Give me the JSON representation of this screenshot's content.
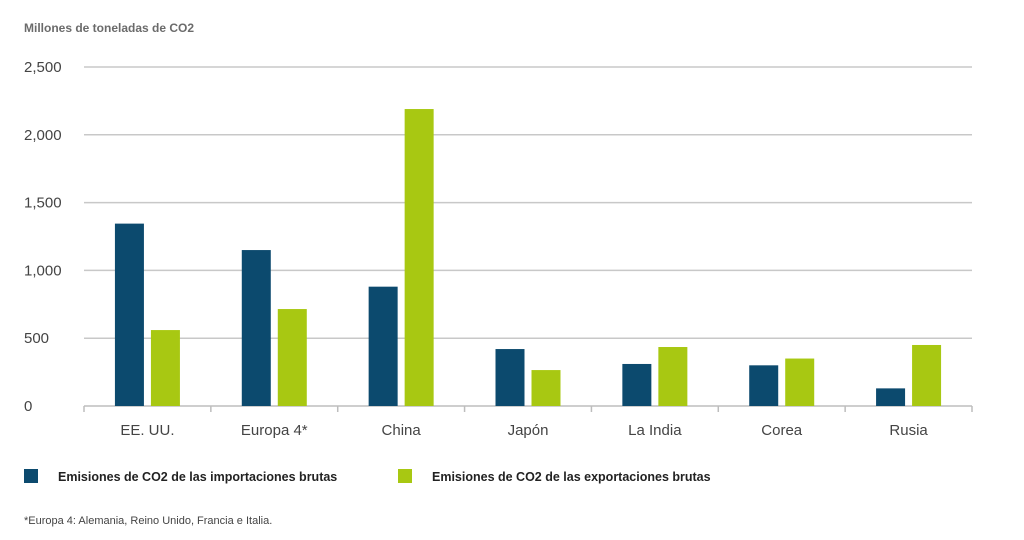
{
  "chart_data": {
    "type": "bar",
    "title": "",
    "unit_label": "Millones de toneladas de CO2",
    "xlabel": "",
    "ylabel": "",
    "categories": [
      "EE. UU.",
      "Europa 4*",
      "China",
      "Japón",
      "La India",
      "Corea",
      "Rusia"
    ],
    "series": [
      {
        "name": "Emisiones de CO2 de las importaciones brutas",
        "color": "#0c4a6e",
        "values": [
          1345,
          1150,
          880,
          420,
          310,
          300,
          130
        ]
      },
      {
        "name": "Emisiones de CO2 de las exportaciones brutas",
        "color": "#a8c812",
        "values": [
          560,
          715,
          2190,
          265,
          435,
          350,
          450
        ]
      }
    ],
    "ylim": [
      0,
      2500
    ],
    "yticks": [
      0,
      500,
      1000,
      1500,
      2000,
      2500
    ],
    "ytick_labels": [
      "0",
      "500",
      "1,000",
      "1,500",
      "2,000",
      "2,500"
    ],
    "grid": true,
    "legend_position": "bottom-left",
    "footnote": "*Europa 4: Alemania, Reino Unido, Francia e Italia."
  }
}
